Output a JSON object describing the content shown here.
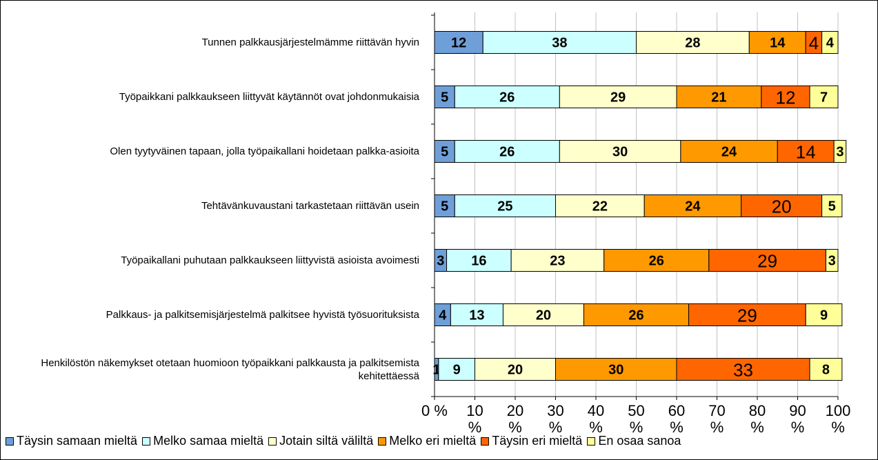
{
  "chart_data": {
    "type": "bar",
    "orientation": "horizontal",
    "stacked": true,
    "categories": [
      "Tunnen palkkausjärjestelmämme riittävän hyvin",
      "Työpaikkani palkkaukseen liittyvät käytännöt ovat johdonmukaisia",
      "Olen tyytyväinen tapaan, jolla työpaikallani hoidetaan palkka-asioita",
      "Tehtävänkuvaustani tarkastetaan riittävän usein",
      "Työpaikallani puhutaan palkkaukseen liittyvistä asioista avoimesti",
      "Palkkaus- ja palkitsemisjärjestelmä palkitsee hyvistä työsuorituksista",
      "Henkilöstön näkemykset otetaan huomioon työpaikkani palkkausta ja palkitsemista kehitettäessä"
    ],
    "series": [
      {
        "name": "Täysin samaan mieltä",
        "color": "#6f9fd8",
        "values": [
          12,
          5,
          5,
          5,
          3,
          4,
          1
        ]
      },
      {
        "name": "Melko samaa mieltä",
        "color": "#ccffff",
        "values": [
          38,
          26,
          26,
          25,
          16,
          13,
          9
        ]
      },
      {
        "name": "Jotain siltä väliltä",
        "color": "#ffffcc",
        "values": [
          28,
          29,
          30,
          22,
          23,
          20,
          20
        ]
      },
      {
        "name": "Melko eri mieltä",
        "color": "#ff9900",
        "values": [
          14,
          21,
          24,
          24,
          26,
          26,
          30
        ]
      },
      {
        "name": "Täysin eri mieltä",
        "color": "#ff6600",
        "values": [
          4,
          12,
          14,
          20,
          29,
          29,
          33
        ]
      },
      {
        "name": "En osaa sanoa",
        "color": "#ffff99",
        "values": [
          4,
          7,
          3,
          5,
          3,
          9,
          8
        ]
      }
    ],
    "xlim": [
      0,
      100
    ],
    "xticks": [
      {
        "value": 0,
        "label": "0 %"
      },
      {
        "value": 10,
        "label": "10 %"
      },
      {
        "value": 20,
        "label": "20 %"
      },
      {
        "value": 30,
        "label": "30 %"
      },
      {
        "value": 40,
        "label": "40 %"
      },
      {
        "value": 50,
        "label": "50 %"
      },
      {
        "value": 60,
        "label": "60 %"
      },
      {
        "value": 70,
        "label": "70 %"
      },
      {
        "value": 80,
        "label": "80 %"
      },
      {
        "value": 90,
        "label": "90 %"
      },
      {
        "value": 100,
        "label": "100 %"
      }
    ],
    "grid": true,
    "legend": "bottom"
  }
}
